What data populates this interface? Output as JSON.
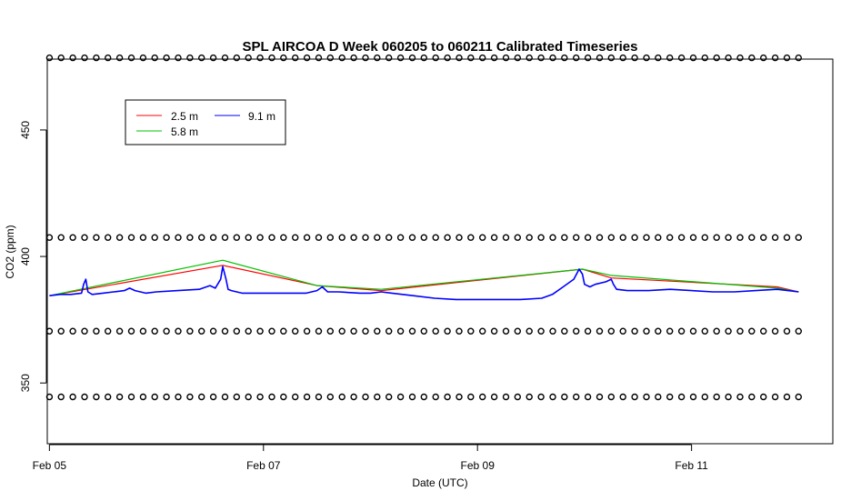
{
  "chart_data": {
    "type": "line",
    "title": "SPL AIRCOA D  Week 060205 to 060211  Calibrated Timeseries",
    "xlabel": "Date (UTC)",
    "ylabel": "CO2 (ppm)",
    "xlim": [
      -0.02,
      7.32
    ],
    "ylim": [
      326,
      478
    ],
    "x_units": "days since Feb 05 00:00 UTC",
    "x_ticks": [
      {
        "value": 0,
        "label": "Feb 05"
      },
      {
        "value": 2,
        "label": "Feb 07"
      },
      {
        "value": 4,
        "label": "Feb 09"
      },
      {
        "value": 6,
        "label": "Feb 11"
      }
    ],
    "y_ticks": [
      350,
      400,
      450
    ],
    "grid": false,
    "legend": {
      "placement": "top-left",
      "entries": [
        {
          "label": "2.5 m",
          "color": "#ff0000"
        },
        {
          "label": "5.8 m",
          "color": "#00c000"
        },
        {
          "label": "9.1 m",
          "color": "#0000ff"
        }
      ]
    },
    "series": [
      {
        "name": "9.1 m",
        "color": "#0000ff",
        "x": [
          0.0,
          0.1,
          0.2,
          0.3,
          0.32,
          0.34,
          0.36,
          0.4,
          0.5,
          0.6,
          0.7,
          0.75,
          0.8,
          0.9,
          1.0,
          1.2,
          1.4,
          1.5,
          1.55,
          1.6,
          1.62,
          1.65,
          1.67,
          1.7,
          1.75,
          1.8,
          2.0,
          2.2,
          2.4,
          2.5,
          2.55,
          2.6,
          2.7,
          2.9,
          3.0,
          3.1,
          3.2,
          3.3,
          3.4,
          3.6,
          3.8,
          4.0,
          4.2,
          4.4,
          4.6,
          4.7,
          4.8,
          4.9,
          4.95,
          4.98,
          5.0,
          5.05,
          5.1,
          5.2,
          5.25,
          5.27,
          5.3,
          5.4,
          5.6,
          5.8,
          6.0,
          6.2,
          6.4,
          6.6,
          6.8,
          6.9,
          7.0
        ],
        "y": [
          384.5,
          385,
          385,
          385.5,
          389,
          391,
          386,
          385,
          385.5,
          386,
          386.5,
          387.5,
          386.5,
          385.5,
          386,
          386.5,
          387,
          388.5,
          387.5,
          391,
          396,
          391,
          387,
          386.5,
          386,
          385.5,
          385.5,
          385.5,
          385.5,
          386.5,
          388,
          386,
          386,
          385.5,
          385.5,
          386,
          385.5,
          385,
          384.5,
          383.5,
          383,
          383,
          383,
          383,
          383.5,
          385,
          388,
          391,
          395,
          393,
          389,
          388,
          389,
          390,
          391,
          389,
          387,
          386.5,
          386.5,
          387,
          386.5,
          386,
          386,
          386.5,
          387,
          386.5,
          386
        ]
      },
      {
        "name": "2.5 m",
        "color": "#ff0000",
        "x": [
          0.0,
          1.62,
          2.5,
          3.1,
          4.98,
          5.25,
          6.8,
          7.0
        ],
        "y": [
          384.5,
          396.5,
          388.5,
          386.5,
          395,
          391.5,
          388,
          386
        ]
      },
      {
        "name": "5.8 m",
        "color": "#00c000",
        "x": [
          0.0,
          1.62,
          2.5,
          3.1,
          4.98,
          5.25,
          6.8,
          7.0
        ],
        "y": [
          384.5,
          398.5,
          388.5,
          387,
          395,
          392.5,
          387.5,
          386
        ]
      }
    ],
    "marker_rows": [
      478.5,
      407.5,
      370.5,
      344.5
    ],
    "marker_x_start": 0.0,
    "marker_x_end": 7.0,
    "marker_count": 65
  }
}
